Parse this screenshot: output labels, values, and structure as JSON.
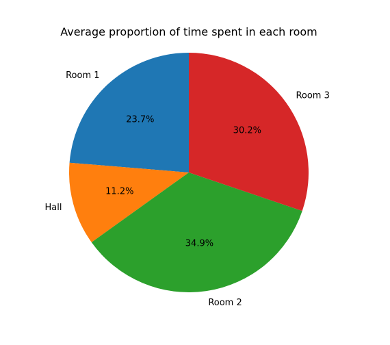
{
  "chart_data": {
    "type": "pie",
    "title": "Average proportion of time spent in each room",
    "start_angle_deg": 90,
    "direction": "counterclockwise",
    "slices": [
      {
        "label": "Room 1",
        "value": 23.7,
        "pct_label": "23.7%",
        "color": "#1f77b4"
      },
      {
        "label": "Hall",
        "value": 11.2,
        "pct_label": "11.2%",
        "color": "#ff7f0e"
      },
      {
        "label": "Room 2",
        "value": 34.9,
        "pct_label": "34.9%",
        "color": "#2ca02c"
      },
      {
        "label": "Room 3",
        "value": 30.2,
        "pct_label": "30.2%",
        "color": "#d62728"
      }
    ]
  }
}
